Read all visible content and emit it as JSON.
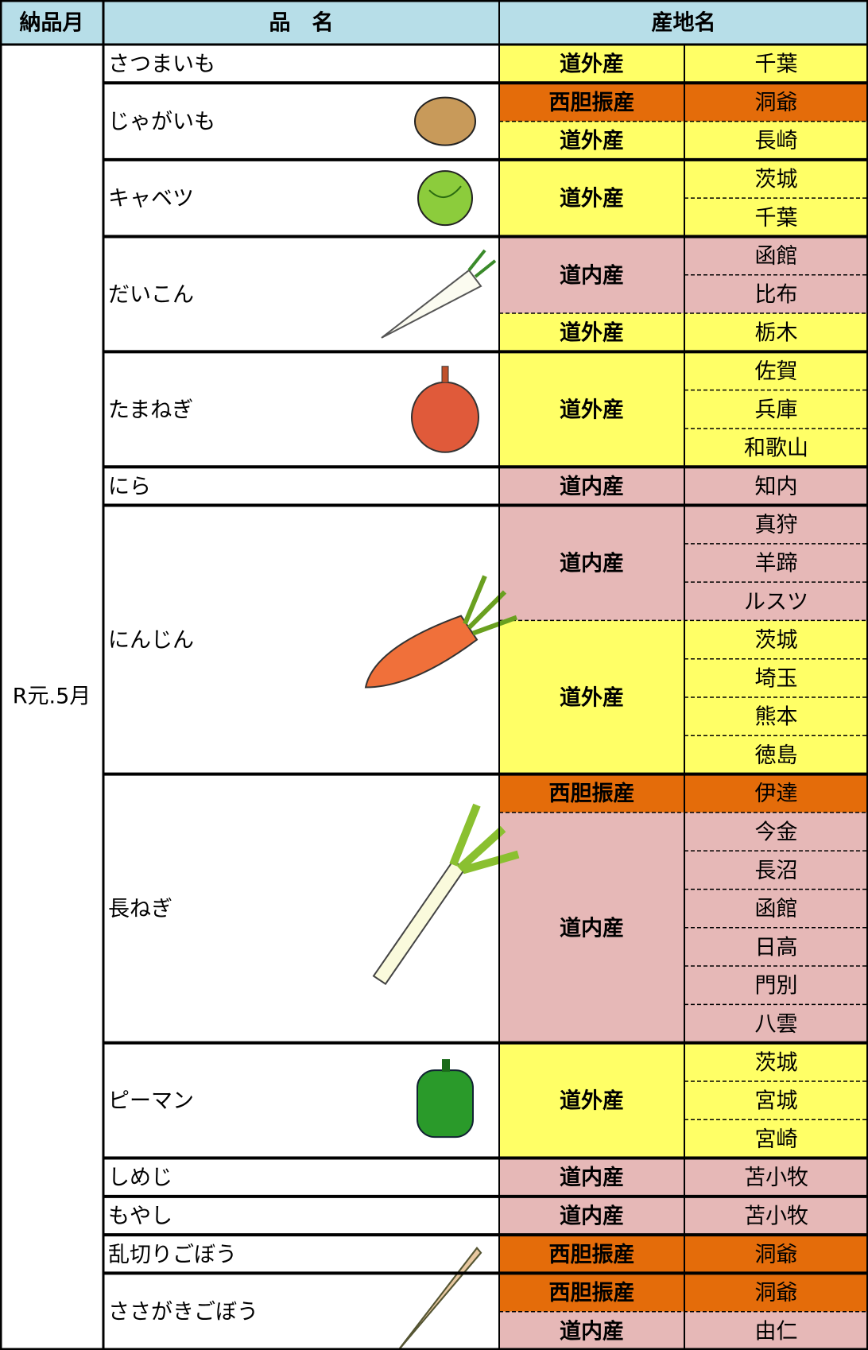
{
  "header": {
    "month": "納品月",
    "item": "品　名",
    "origin": "産地名"
  },
  "month": "R元.5月",
  "items": [
    {
      "name": "さつまいも",
      "groups": [
        {
          "region": "道外産",
          "color": "#ffff66",
          "places": [
            "千葉"
          ]
        }
      ]
    },
    {
      "name": "じゃがいも",
      "groups": [
        {
          "region": "西胆振産",
          "color": "#e46c0a",
          "places": [
            "洞爺"
          ]
        },
        {
          "region": "道外産",
          "color": "#ffff66",
          "places": [
            "長崎"
          ]
        }
      ]
    },
    {
      "name": "キャベツ",
      "groups": [
        {
          "region": "道外産",
          "color": "#ffff66",
          "places": [
            "茨城",
            "千葉"
          ]
        }
      ]
    },
    {
      "name": "だいこん",
      "groups": [
        {
          "region": "道内産",
          "color": "#e6b8b7",
          "places": [
            "函館",
            "比布"
          ]
        },
        {
          "region": "道外産",
          "color": "#ffff66",
          "places": [
            "栃木"
          ]
        }
      ]
    },
    {
      "name": "たまねぎ",
      "groups": [
        {
          "region": "道外産",
          "color": "#ffff66",
          "places": [
            "佐賀",
            "兵庫",
            "和歌山"
          ]
        }
      ]
    },
    {
      "name": "にら",
      "groups": [
        {
          "region": "道内産",
          "color": "#e6b8b7",
          "places": [
            "知内"
          ]
        }
      ]
    },
    {
      "name": "にんじん",
      "groups": [
        {
          "region": "道内産",
          "color": "#e6b8b7",
          "places": [
            "真狩",
            "羊蹄",
            "ルスツ"
          ]
        },
        {
          "region": "道外産",
          "color": "#ffff66",
          "places": [
            "茨城",
            "埼玉",
            "熊本",
            "徳島"
          ]
        }
      ]
    },
    {
      "name": "長ねぎ",
      "groups": [
        {
          "region": "西胆振産",
          "color": "#e46c0a",
          "places": [
            "伊達"
          ]
        },
        {
          "region": "道内産",
          "color": "#e6b8b7",
          "places": [
            "今金",
            "長沼",
            "函館",
            "日高",
            "門別",
            "八雲"
          ]
        }
      ]
    },
    {
      "name": "ピーマン",
      "groups": [
        {
          "region": "道外産",
          "color": "#ffff66",
          "places": [
            "茨城",
            "宮城",
            "宮崎"
          ]
        }
      ]
    },
    {
      "name": "しめじ",
      "groups": [
        {
          "region": "道内産",
          "color": "#e6b8b7",
          "places": [
            "苫小牧"
          ]
        }
      ]
    },
    {
      "name": "もやし",
      "groups": [
        {
          "region": "道内産",
          "color": "#e6b8b7",
          "places": [
            "苫小牧"
          ]
        }
      ]
    },
    {
      "name": "乱切りごぼう",
      "groups": [
        {
          "region": "西胆振産",
          "color": "#e46c0a",
          "places": [
            "洞爺"
          ]
        }
      ]
    },
    {
      "name": "ささがきごぼう",
      "groups": [
        {
          "region": "西胆振産",
          "color": "#e46c0a",
          "places": [
            "洞爺"
          ]
        },
        {
          "region": "道内産",
          "color": "#e6b8b7",
          "places": [
            "由仁"
          ]
        }
      ]
    }
  ]
}
